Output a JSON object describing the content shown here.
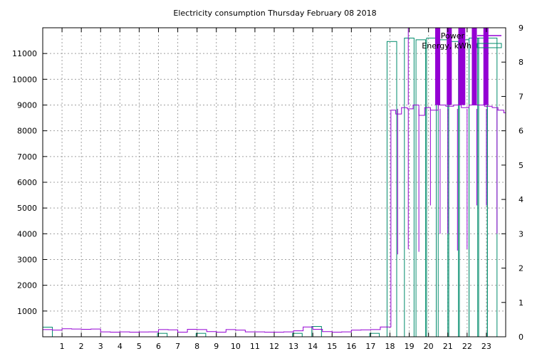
{
  "chart_data": {
    "type": "line",
    "title": "Electricity consumption Thursday February 08 2018",
    "x_ticks": [
      "1",
      "2",
      "3",
      "4",
      "5",
      "6",
      "7",
      "8",
      "9",
      "10",
      "11",
      "12",
      "13",
      "14",
      "15",
      "16",
      "17",
      "18",
      "19",
      "20",
      "21",
      "22",
      "23"
    ],
    "xlim": [
      0,
      24
    ],
    "y_left": {
      "ticks": [
        1000,
        2000,
        3000,
        4000,
        5000,
        6000,
        7000,
        8000,
        9000,
        10000,
        11000
      ],
      "ylim": [
        0,
        12000
      ]
    },
    "y_right": {
      "ticks": [
        0,
        1,
        2,
        3,
        4,
        5,
        6,
        7,
        8,
        9
      ],
      "ylim": [
        0,
        9
      ]
    },
    "grid": true,
    "legend_position": "top-right",
    "series": [
      {
        "name": "Power",
        "axis": "left",
        "color": "#9400d3",
        "style": "step",
        "points": [
          [
            0,
            280
          ],
          [
            0.5,
            260
          ],
          [
            1,
            310
          ],
          [
            1.5,
            300
          ],
          [
            2,
            290
          ],
          [
            2.5,
            300
          ],
          [
            3,
            190
          ],
          [
            3.5,
            180
          ],
          [
            4,
            190
          ],
          [
            4.5,
            180
          ],
          [
            5,
            185
          ],
          [
            5.5,
            190
          ],
          [
            6,
            280
          ],
          [
            6.5,
            270
          ],
          [
            7,
            180
          ],
          [
            7.5,
            290
          ],
          [
            8,
            280
          ],
          [
            8.5,
            200
          ],
          [
            9,
            180
          ],
          [
            9.5,
            280
          ],
          [
            10,
            260
          ],
          [
            10.5,
            190
          ],
          [
            11,
            190
          ],
          [
            11.5,
            180
          ],
          [
            12,
            180
          ],
          [
            12.5,
            190
          ],
          [
            13,
            230
          ],
          [
            13.5,
            380
          ],
          [
            14,
            290
          ],
          [
            14.5,
            200
          ],
          [
            15,
            180
          ],
          [
            15.5,
            190
          ],
          [
            16,
            260
          ],
          [
            16.5,
            270
          ],
          [
            17,
            280
          ],
          [
            17.5,
            380
          ],
          [
            18.05,
            8800
          ],
          [
            18.3,
            8650
          ],
          [
            18.6,
            8900
          ],
          [
            18.9,
            8850
          ],
          [
            19.2,
            9000
          ],
          [
            19.5,
            8600
          ],
          [
            19.8,
            8900
          ],
          [
            20.1,
            8800
          ],
          [
            20.5,
            9000
          ],
          [
            20.9,
            8950
          ],
          [
            21.3,
            9000
          ],
          [
            21.7,
            8900
          ],
          [
            22.1,
            9000
          ],
          [
            22.5,
            9000
          ],
          [
            22.9,
            8950
          ],
          [
            23.3,
            8900
          ],
          [
            23.6,
            8800
          ],
          [
            23.9,
            8700
          ]
        ],
        "dips": [
          [
            18.4,
            3200
          ],
          [
            18.95,
            3400
          ],
          [
            19.5,
            3300
          ],
          [
            20.1,
            5100
          ],
          [
            20.6,
            4000
          ],
          [
            21.0,
            4000
          ],
          [
            21.5,
            3350
          ],
          [
            22.0,
            3400
          ],
          [
            22.5,
            5100
          ],
          [
            23.0,
            5100
          ],
          [
            23.55,
            4000
          ]
        ],
        "spikes": [
          20.4,
          20.5,
          20.55,
          21.0,
          21.05,
          21.15,
          21.6,
          21.65,
          21.7,
          21.8,
          21.85,
          22.3,
          22.35,
          22.45,
          22.9,
          22.95,
          23.05
        ]
      },
      {
        "name": "Energy, kWh",
        "axis": "right",
        "color": "#008b6b",
        "style": "bars",
        "bars": [
          [
            0.0,
            0.28
          ],
          [
            5.95,
            0.1
          ],
          [
            7.95,
            0.1
          ],
          [
            12.95,
            0.1
          ],
          [
            13.95,
            0.3
          ],
          [
            16.95,
            0.1
          ],
          [
            17.85,
            8.6
          ],
          [
            18.75,
            8.7
          ],
          [
            19.35,
            8.65
          ],
          [
            19.9,
            8.7
          ],
          [
            20.5,
            8.65
          ],
          [
            21.05,
            8.6
          ],
          [
            21.6,
            8.65
          ],
          [
            22.1,
            8.7
          ],
          [
            22.55,
            8.7
          ],
          [
            23.05,
            8.7
          ]
        ]
      }
    ]
  }
}
